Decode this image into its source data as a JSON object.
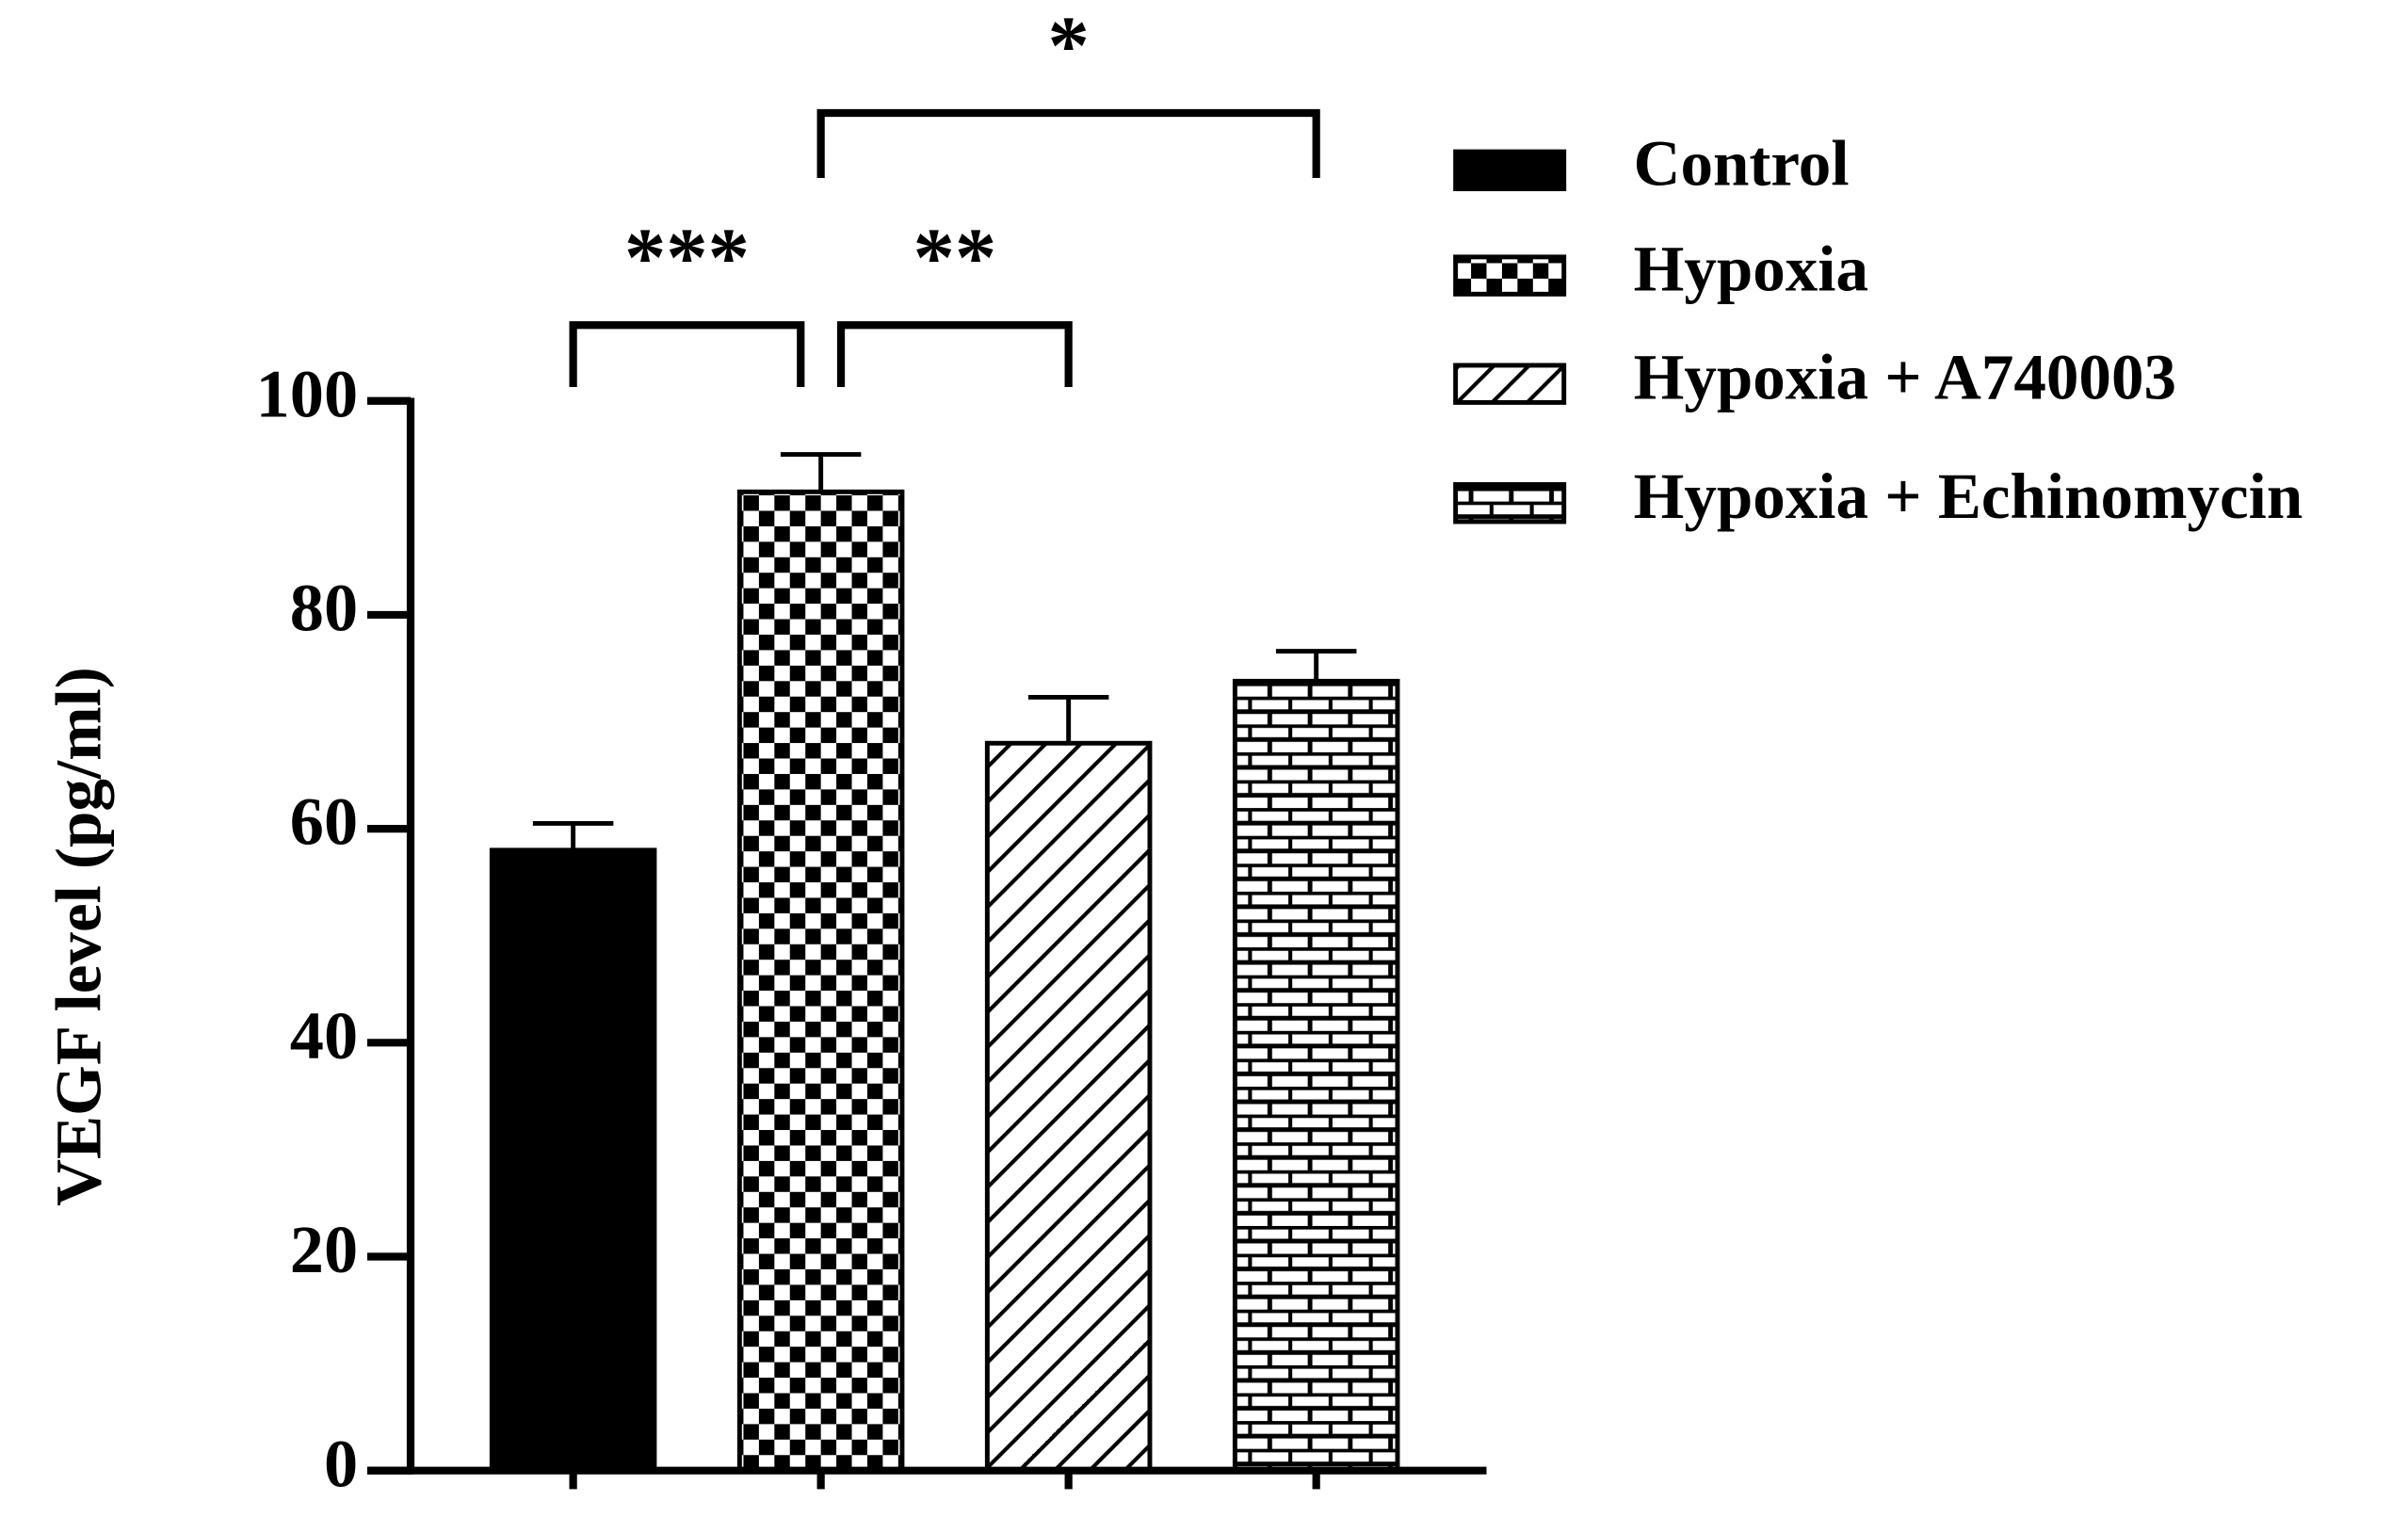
{
  "chart_data": {
    "type": "bar",
    "y_label": "VEGF level (pg/ml)",
    "categories": [
      "Control",
      "Hypoxia",
      "Hypoxia + A740003",
      "Hypoxia + Echinomycin"
    ],
    "values": [
      58,
      91.5,
      68,
      73.8
    ],
    "errors": [
      2.5,
      3.5,
      4.3,
      2.8
    ],
    "patterns": [
      "solid",
      "checker",
      "diagonal",
      "brick"
    ],
    "color": "#000000",
    "ylim": [
      0,
      100
    ],
    "yticks": [
      0,
      20,
      40,
      60,
      80,
      100
    ],
    "grid": false,
    "legend": "right",
    "comparisons": [
      {
        "from": "Control",
        "to": "Hypoxia",
        "label": "***"
      },
      {
        "from": "Hypoxia",
        "to": "Hypoxia + A740003",
        "label": "**"
      },
      {
        "from": "Hypoxia",
        "to": "Hypoxia + Echinomycin",
        "label": "*"
      }
    ]
  }
}
